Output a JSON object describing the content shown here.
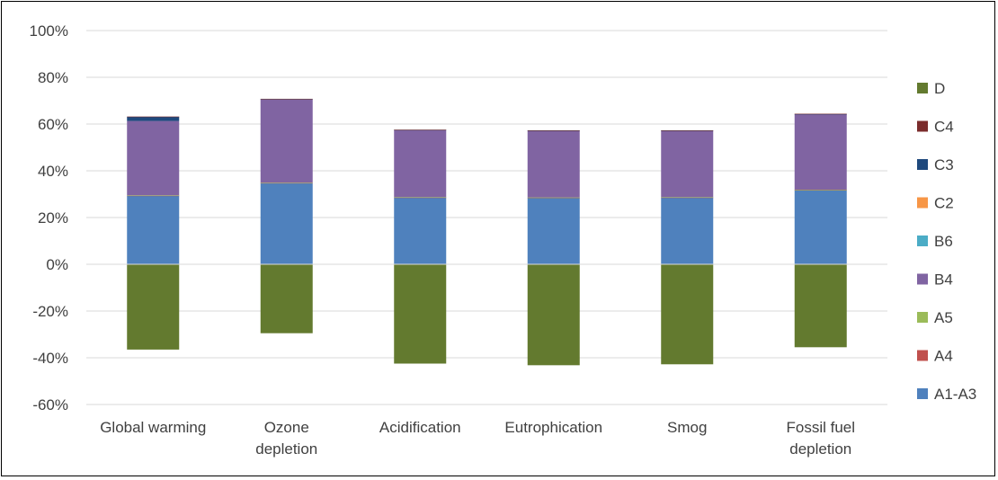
{
  "chart_data": {
    "type": "bar",
    "stacked": true,
    "title": "",
    "xlabel": "",
    "ylabel": "",
    "ylim": [
      -60,
      100
    ],
    "ytick_labels": [
      "100%",
      "80%",
      "60%",
      "40%",
      "20%",
      "0%",
      "-20%",
      "-40%",
      "-60%"
    ],
    "grid": true,
    "legend_position": "right",
    "categories": [
      "Global warming",
      "Ozone depletion",
      "Acidification",
      "Eutrophication",
      "Smog",
      "Fossil fuel depletion"
    ],
    "category_lines": [
      [
        "Global warming"
      ],
      [
        "Ozone",
        "depletion"
      ],
      [
        "Acidification"
      ],
      [
        "Eutrophication"
      ],
      [
        "Smog"
      ],
      [
        "Fossil fuel",
        "depletion"
      ]
    ],
    "series": [
      {
        "name": "A1-A3",
        "color": "#4f81bd",
        "values": [
          29.3,
          34.7,
          28.5,
          28.4,
          28.5,
          31.7
        ]
      },
      {
        "name": "A4",
        "color": "#c0504d",
        "values": [
          0.1,
          0.1,
          0.1,
          0.1,
          0.1,
          0.1
        ]
      },
      {
        "name": "A5",
        "color": "#9bbb59",
        "values": [
          0.1,
          0.1,
          0.1,
          0.1,
          0.1,
          0.1
        ]
      },
      {
        "name": "B4",
        "color": "#8064a2",
        "values": [
          31.8,
          35.6,
          28.7,
          28.5,
          28.4,
          32.3
        ]
      },
      {
        "name": "B6",
        "color": "#4bacc6",
        "values": [
          0,
          0,
          0,
          0,
          0,
          0
        ]
      },
      {
        "name": "C2",
        "color": "#f79646",
        "values": [
          0,
          0,
          0,
          0,
          0,
          0
        ]
      },
      {
        "name": "C3",
        "color": "#1f497d",
        "values": [
          1.8,
          0.2,
          0.1,
          0.1,
          0.1,
          0.1
        ]
      },
      {
        "name": "C4",
        "color": "#7b2c2c",
        "values": [
          0.1,
          0.1,
          0.1,
          0.1,
          0.1,
          0.1
        ]
      },
      {
        "name": "D",
        "color": "#637a2f",
        "values": [
          -36.5,
          -29.5,
          -42.5,
          -43.2,
          -42.8,
          -35.5
        ]
      }
    ],
    "legend_order": [
      "D",
      "C4",
      "C3",
      "C2",
      "B6",
      "B4",
      "A5",
      "A4",
      "A1-A3"
    ]
  }
}
